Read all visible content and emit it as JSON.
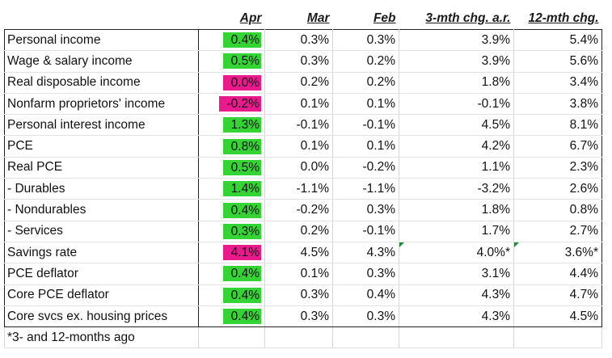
{
  "table": {
    "headers": [
      "",
      "Apr",
      "Mar",
      "Feb",
      "3-mth chg. a.r.",
      "12-mth chg."
    ],
    "rows": [
      {
        "label": "Personal income",
        "apr": "0.4%",
        "mar": "0.3%",
        "feb": "0.3%",
        "m3": "3.9%",
        "m12": "5.4%",
        "apr_color": "#35d435"
      },
      {
        "label": "Wage & salary income",
        "apr": "0.5%",
        "mar": "0.3%",
        "feb": "0.2%",
        "m3": "3.9%",
        "m12": "5.6%",
        "apr_color": "#35d435"
      },
      {
        "label": "Real disposable income",
        "apr": "0.0%",
        "mar": "0.2%",
        "feb": "0.2%",
        "m3": "1.8%",
        "m12": "3.4%",
        "apr_color": "#ea1a8c"
      },
      {
        "label": "Nonfarm proprietors' income",
        "apr": "-0.2%",
        "mar": "0.1%",
        "feb": "0.1%",
        "m3": "-0.1%",
        "m12": "3.8%",
        "apr_color": "#ea1a8c"
      },
      {
        "label": "Personal interest income",
        "apr": "1.3%",
        "mar": "-0.1%",
        "feb": "-0.1%",
        "m3": "4.5%",
        "m12": "8.1%",
        "apr_color": "#35d435"
      },
      {
        "label": "PCE",
        "apr": "0.8%",
        "mar": "0.1%",
        "feb": "0.1%",
        "m3": "4.2%",
        "m12": "6.7%",
        "apr_color": "#35d435"
      },
      {
        "label": "Real PCE",
        "apr": "0.5%",
        "mar": "0.0%",
        "feb": "-0.2%",
        "m3": "1.1%",
        "m12": "2.3%",
        "apr_color": "#35d435"
      },
      {
        "label": "- Durables",
        "apr": "1.4%",
        "mar": "-1.1%",
        "feb": "-1.1%",
        "m3": "-3.2%",
        "m12": "2.6%",
        "apr_color": "#35d435"
      },
      {
        "label": "- Nondurables",
        "apr": "0.4%",
        "mar": "-0.2%",
        "feb": "0.3%",
        "m3": "1.8%",
        "m12": "0.8%",
        "apr_color": "#35d435"
      },
      {
        "label": "- Services",
        "apr": "0.3%",
        "mar": "0.2%",
        "feb": "-0.1%",
        "m3": "1.7%",
        "m12": "2.7%",
        "apr_color": "#35d435"
      },
      {
        "label": "Savings rate",
        "apr": "4.1%",
        "mar": "4.5%",
        "feb": "4.3%",
        "m3": "4.0%*",
        "m12": "3.6%*",
        "apr_color": "#ea1a8c"
      },
      {
        "label": "PCE deflator",
        "apr": "0.4%",
        "mar": "0.1%",
        "feb": "0.3%",
        "m3": "3.1%",
        "m12": "4.4%",
        "apr_color": "#35d435"
      },
      {
        "label": "Core PCE deflator",
        "apr": "0.4%",
        "mar": "0.3%",
        "feb": "0.4%",
        "m3": "4.3%",
        "m12": "4.7%",
        "apr_color": "#35d435"
      },
      {
        "label": "Core svcs ex. housing prices",
        "apr": "0.4%",
        "mar": "0.3%",
        "feb": "0.3%",
        "m3": "4.3%",
        "m12": "4.5%",
        "apr_color": "#35d435"
      }
    ],
    "footnote": "*3- and 12-months ago"
  }
}
